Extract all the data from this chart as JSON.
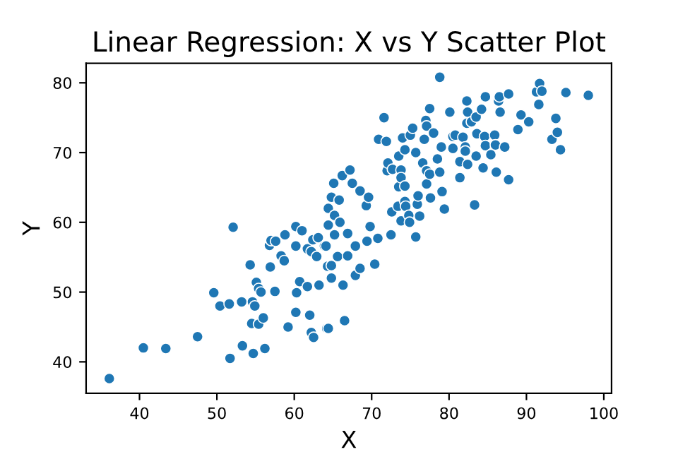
{
  "chart_data": {
    "type": "scatter",
    "title": "Linear Regression: X vs Y Scatter Plot",
    "xlabel": "X",
    "ylabel": "Y",
    "x": [
      36.1,
      40.5,
      43.4,
      47.5,
      49.6,
      50.4,
      51.6,
      52.1,
      51.7,
      53.2,
      53.3,
      54.3,
      54.6,
      54.5,
      54.7,
      54.9,
      55.1,
      55.4,
      55.4,
      55.7,
      56.0,
      56.2,
      56.8,
      57.0,
      56.9,
      57.6,
      57.5,
      58.3,
      58.7,
      58.8,
      59.2,
      60.2,
      60.2,
      60.3,
      60.2,
      60.7,
      61.0,
      61.7,
      61.7,
      62.0,
      62.2,
      62.2,
      62.5,
      62.4,
      62.9,
      63.1,
      63.2,
      63.9,
      64.2,
      64.3,
      64.4,
      65.1,
      64.8,
      65.8,
      64.4,
      65.2,
      65.9,
      65.2,
      64.1,
      64.8,
      65.6,
      64.8,
      64.4,
      66.3,
      66.5,
      66.2,
      67.2,
      67.5,
      66.9,
      66.9,
      67.9,
      67.9,
      68.5,
      68.5,
      69.3,
      69.6,
      69.8,
      69.4,
      70.4,
      70.8,
      70.9,
      71.9,
      71.6,
      72.0,
      72.1,
      72.6,
      72.5,
      72.7,
      73.4,
      73.5,
      73.5,
      73.8,
      73.8,
      74.0,
      73.8,
      74.3,
      74.3,
      74.3,
      74.4,
      74.8,
      74.9,
      75.0,
      75.3,
      75.7,
      75.7,
      75.9,
      76.0,
      76.2,
      76.6,
      76.8,
      77.0,
      77.1,
      77.1,
      77.1,
      77.5,
      77.5,
      77.6,
      78.0,
      78.5,
      78.8,
      79.0,
      79.1,
      78.8,
      79.4,
      80.1,
      80.5,
      80.5,
      80.8,
      81.4,
      81.4,
      81.8,
      82.1,
      82.3,
      82.1,
      82.4,
      82.4,
      82.3,
      82.9,
      83.3,
      83.5,
      83.6,
      83.5,
      84.2,
      84.4,
      84.6,
      84.7,
      84.7,
      85.4,
      85.9,
      86.1,
      86.0,
      86.4,
      86.6,
      86.5,
      87.2,
      87.7,
      87.7,
      88.9,
      89.3,
      90.3,
      91.3,
      91.6,
      91.7,
      92.0,
      93.3,
      93.8,
      94.0,
      94.4,
      95.1,
      98.0
    ],
    "values": [
      37.6,
      42.0,
      41.9,
      43.6,
      49.9,
      48.0,
      48.3,
      59.3,
      40.5,
      48.6,
      42.3,
      53.9,
      48.6,
      45.5,
      41.2,
      48.0,
      51.4,
      50.5,
      45.4,
      50.0,
      46.3,
      41.9,
      56.7,
      57.4,
      53.6,
      57.3,
      50.1,
      55.2,
      54.5,
      58.2,
      45.0,
      56.6,
      59.4,
      49.9,
      47.1,
      51.5,
      58.8,
      50.8,
      56.2,
      46.7,
      55.8,
      44.2,
      43.5,
      57.5,
      55.1,
      57.8,
      51.0,
      56.6,
      44.8,
      53.7,
      62.0,
      65.6,
      63.6,
      63.2,
      59.6,
      61.0,
      60.0,
      58.2,
      56.6,
      53.8,
      55.1,
      52.0,
      44.8,
      51.0,
      45.9,
      66.7,
      67.5,
      65.6,
      58.4,
      55.2,
      56.6,
      52.4,
      53.4,
      64.5,
      62.4,
      63.6,
      59.4,
      57.3,
      54.0,
      57.7,
      71.9,
      71.6,
      75.0,
      67.4,
      68.5,
      61.5,
      58.2,
      67.6,
      62.3,
      69.5,
      65.1,
      67.5,
      66.4,
      72.1,
      60.2,
      70.4,
      63.0,
      65.2,
      62.3,
      61.0,
      60.0,
      72.5,
      73.5,
      70.0,
      57.9,
      62.6,
      63.8,
      60.9,
      68.5,
      71.9,
      74.6,
      73.8,
      67.4,
      65.5,
      66.9,
      76.3,
      63.5,
      72.8,
      69.1,
      67.2,
      70.8,
      64.4,
      80.8,
      61.9,
      75.8,
      72.3,
      70.6,
      72.5,
      68.7,
      66.4,
      72.2,
      70.8,
      77.4,
      70.2,
      75.8,
      68.3,
      74.2,
      74.4,
      62.5,
      75.1,
      72.7,
      69.5,
      76.2,
      67.8,
      72.3,
      78.0,
      71.0,
      69.7,
      72.5,
      67.2,
      71.1,
      77.4,
      75.8,
      78.0,
      70.8,
      78.4,
      66.1,
      73.3,
      75.4,
      74.4,
      78.7,
      76.9,
      79.9,
      78.8,
      71.9,
      74.9,
      72.9,
      70.4,
      78.6,
      78.2
    ],
    "color": "#1f77b4",
    "marker": "circle",
    "xlim": [
      33.1,
      101.0
    ],
    "ylim": [
      35.5,
      82.8
    ],
    "xticks": [
      40,
      50,
      60,
      70,
      80,
      90,
      100
    ],
    "yticks": [
      40,
      50,
      60,
      70,
      80
    ],
    "grid": false
  }
}
